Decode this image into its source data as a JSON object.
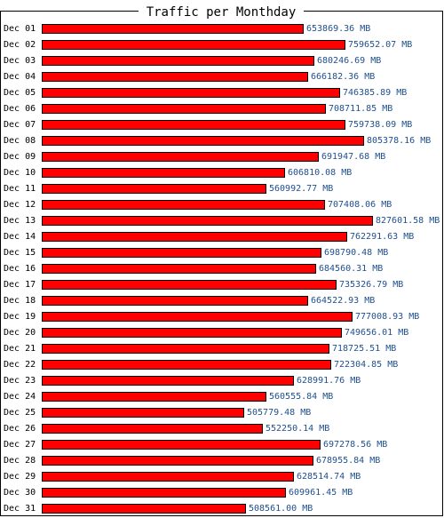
{
  "chart_data": {
    "type": "bar",
    "orientation": "horizontal",
    "title": "Traffic per Monthday",
    "unit": "MB",
    "categories": [
      "Dec 01",
      "Dec 02",
      "Dec 03",
      "Dec 04",
      "Dec 05",
      "Dec 06",
      "Dec 07",
      "Dec 08",
      "Dec 09",
      "Dec 10",
      "Dec 11",
      "Dec 12",
      "Dec 13",
      "Dec 14",
      "Dec 15",
      "Dec 16",
      "Dec 17",
      "Dec 18",
      "Dec 19",
      "Dec 20",
      "Dec 21",
      "Dec 22",
      "Dec 23",
      "Dec 24",
      "Dec 25",
      "Dec 26",
      "Dec 27",
      "Dec 28",
      "Dec 29",
      "Dec 30",
      "Dec 31"
    ],
    "values": [
      653869.36,
      759652.07,
      680246.69,
      666182.36,
      746385.89,
      708711.85,
      759738.09,
      805378.16,
      691947.68,
      606810.08,
      560992.77,
      707408.06,
      827601.58,
      762291.63,
      698790.48,
      684560.31,
      735326.79,
      664522.93,
      777008.93,
      749656.01,
      718725.51,
      722304.85,
      628991.76,
      560555.84,
      505779.48,
      552250.14,
      697278.56,
      678955.84,
      628514.74,
      609961.45,
      508561.0
    ],
    "value_labels": [
      "653869.36 MB",
      "759652.07 MB",
      "680246.69 MB",
      "666182.36 MB",
      "746385.89 MB",
      "708711.85 MB",
      "759738.09 MB",
      "805378.16 MB",
      "691947.68 MB",
      "606810.08 MB",
      "560992.77 MB",
      "707408.06 MB",
      "827601.58 MB",
      "762291.63 MB",
      "698790.48 MB",
      "684560.31 MB",
      "735326.79 MB",
      "664522.93 MB",
      "777008.93 MB",
      "749656.01 MB",
      "718725.51 MB",
      "722304.85 MB",
      "628991.76 MB",
      "560555.84 MB",
      "505779.48 MB",
      "552250.14 MB",
      "697278.56 MB",
      "678955.84 MB",
      "628514.74 MB",
      "609961.45 MB",
      "508561.00 MB"
    ],
    "xlim": [
      0,
      827601.58
    ],
    "grid": false,
    "legend": "none",
    "colors": {
      "bar": "#ff0000",
      "value_text": "#1f4f8f",
      "frame": "#000000"
    }
  }
}
